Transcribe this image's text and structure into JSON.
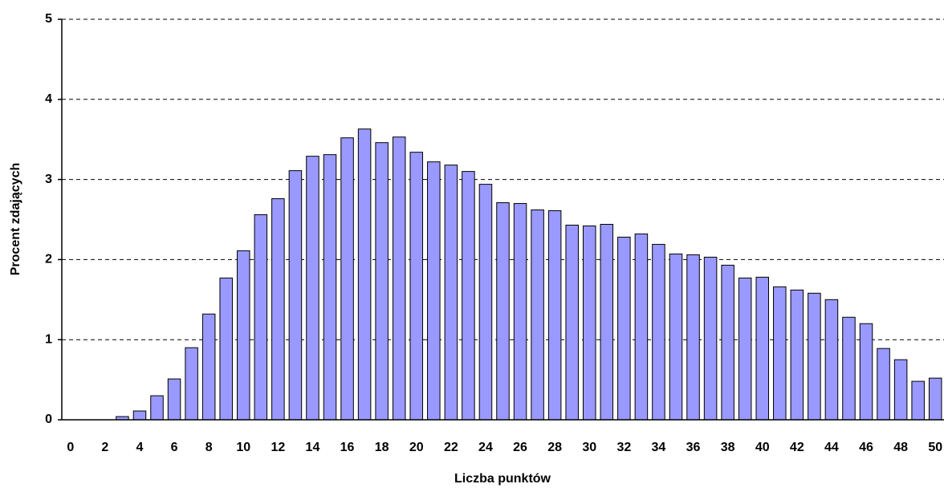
{
  "chart_data": {
    "type": "bar",
    "xlabel": "Liczba punktów",
    "ylabel": "Procent zdających",
    "categories": [
      0,
      null,
      2,
      null,
      4,
      null,
      6,
      null,
      8,
      null,
      10,
      null,
      12,
      null,
      14,
      null,
      16,
      null,
      18,
      null,
      20,
      null,
      22,
      null,
      24,
      null,
      26,
      null,
      28,
      null,
      30,
      null,
      32,
      null,
      34,
      null,
      36,
      null,
      38,
      null,
      40,
      null,
      42,
      null,
      44,
      null,
      46,
      null,
      48,
      null,
      50
    ],
    "values": [
      0,
      0,
      0,
      0.04,
      0.11,
      0.3,
      0.51,
      0.9,
      1.32,
      1.77,
      2.11,
      2.56,
      2.76,
      3.11,
      3.29,
      3.31,
      3.52,
      3.63,
      3.46,
      3.53,
      3.34,
      3.22,
      3.18,
      3.1,
      2.94,
      2.71,
      2.7,
      2.62,
      2.61,
      2.43,
      2.42,
      2.44,
      2.28,
      2.32,
      2.19,
      2.07,
      2.06,
      2.03,
      1.93,
      1.77,
      1.78,
      1.66,
      1.62,
      1.58,
      1.5,
      1.28,
      1.2,
      0.89,
      0.75,
      0.48,
      0.52
    ],
    "color": "#9999ff",
    "ylim": [
      0,
      5
    ],
    "yticks": [
      0,
      1,
      2,
      3,
      4,
      5
    ],
    "grid": true
  }
}
